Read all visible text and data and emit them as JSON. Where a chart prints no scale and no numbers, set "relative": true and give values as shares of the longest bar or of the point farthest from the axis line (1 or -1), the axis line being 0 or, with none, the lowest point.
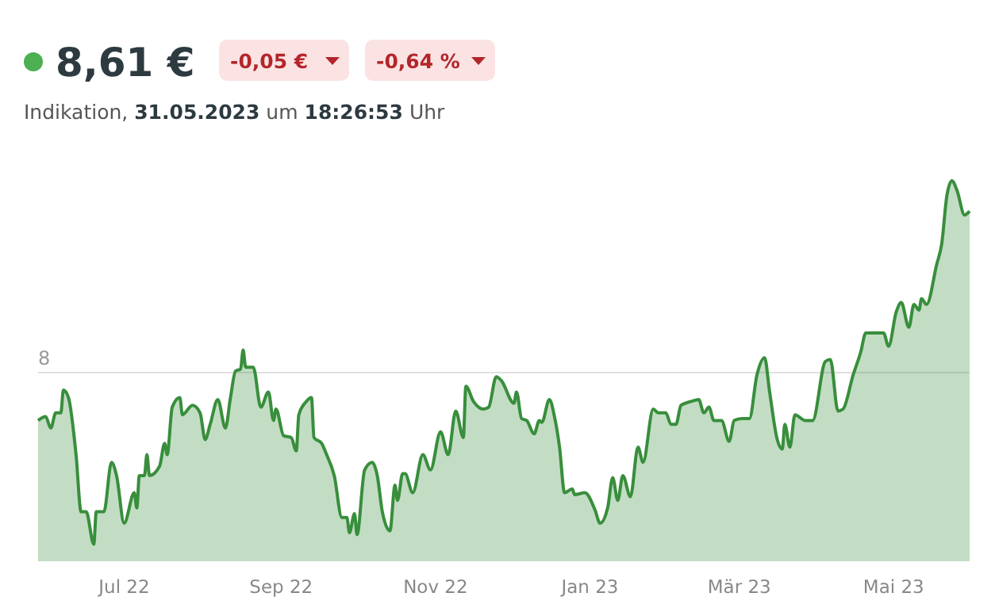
{
  "chart_data": {
    "type": "area",
    "title": "8,61 €",
    "subtitle": "Indikation, 31.05.2023 um 18:26:53 Uhr",
    "annotations": [
      "-0,05 €",
      "-0,64 %",
      {
        "text": "8",
        "y": 0.496
      }
    ],
    "relative": true,
    "x": [
      "2022-05-28",
      "2022-05-31",
      "2022-06-02",
      "2022-06-04",
      "2022-06-06",
      "2022-06-07",
      "2022-06-09",
      "2022-06-12",
      "2022-06-14",
      "2022-06-16",
      "2022-06-19",
      "2022-06-20",
      "2022-06-23",
      "2022-06-26",
      "2022-06-28",
      "2022-07-01",
      "2022-07-05",
      "2022-07-06",
      "2022-07-07",
      "2022-07-09",
      "2022-07-10",
      "2022-07-11",
      "2022-07-15",
      "2022-07-17",
      "2022-07-18",
      "2022-07-20",
      "2022-07-23",
      "2022-07-24",
      "2022-07-28",
      "2022-07-31",
      "2022-08-02",
      "2022-08-04",
      "2022-08-07",
      "2022-08-10",
      "2022-08-12",
      "2022-08-14",
      "2022-08-16",
      "2022-08-17",
      "2022-08-18",
      "2022-08-21",
      "2022-08-24",
      "2022-08-27",
      "2022-08-29",
      "2022-08-30",
      "2022-09-02",
      "2022-09-05",
      "2022-09-07",
      "2022-09-08",
      "2022-09-11",
      "2022-09-13",
      "2022-09-14",
      "2022-09-17",
      "2022-09-19",
      "2022-09-22",
      "2022-09-25",
      "2022-09-27",
      "2022-09-28",
      "2022-09-30",
      "2022-10-01",
      "2022-10-04",
      "2022-10-07",
      "2022-10-09",
      "2022-10-11",
      "2022-10-14",
      "2022-10-16",
      "2022-10-17",
      "2022-10-19",
      "2022-10-20",
      "2022-10-23",
      "2022-10-27",
      "2022-10-30",
      "2022-11-03",
      "2022-11-06",
      "2022-11-09",
      "2022-11-12",
      "2022-11-13",
      "2022-11-16",
      "2022-11-20",
      "2022-11-22",
      "2022-11-25",
      "2022-11-27",
      "2022-12-02",
      "2022-12-03",
      "2022-12-05",
      "2022-12-07",
      "2022-12-10",
      "2022-12-12",
      "2022-12-13",
      "2022-12-16",
      "2022-12-18",
      "2022-12-20",
      "2022-12-22",
      "2022-12-25",
      "2022-12-26",
      "2022-12-30",
      "2023-01-03",
      "2023-01-05",
      "2023-01-08",
      "2023-01-10",
      "2023-01-12",
      "2023-01-14",
      "2023-01-17",
      "2023-01-20",
      "2023-01-22",
      "2023-01-26",
      "2023-01-28",
      "2023-01-31",
      "2023-02-02",
      "2023-02-04",
      "2023-02-06",
      "2023-02-10",
      "2023-02-13",
      "2023-02-15",
      "2023-02-17",
      "2023-02-19",
      "2023-02-22",
      "2023-02-25",
      "2023-02-27",
      "2023-03-02",
      "2023-03-05",
      "2023-03-08",
      "2023-03-11",
      "2023-03-13",
      "2023-03-16",
      "2023-03-18",
      "2023-03-19",
      "2023-03-21",
      "2023-03-23",
      "2023-03-27",
      "2023-03-30",
      "2023-04-04",
      "2023-04-06",
      "2023-04-09",
      "2023-04-11",
      "2023-04-15",
      "2023-04-18",
      "2023-04-20",
      "2023-04-23",
      "2023-04-27",
      "2023-04-29",
      "2023-05-02",
      "2023-05-04",
      "2023-05-07",
      "2023-05-09",
      "2023-05-11",
      "2023-05-12",
      "2023-05-14",
      "2023-05-18",
      "2023-05-20",
      "2023-05-22",
      "2023-05-24",
      "2023-05-26",
      "2023-05-29",
      "2023-05-31"
    ],
    "series": [
      {
        "color": "#388e3c",
        "values": [
          0.37,
          0.38,
          0.35,
          0.39,
          0.39,
          0.45,
          0.43,
          0.28,
          0.13,
          0.13,
          0.045,
          0.13,
          0.13,
          0.26,
          0.225,
          0.1,
          0.18,
          0.14,
          0.225,
          0.225,
          0.28,
          0.225,
          0.25,
          0.31,
          0.28,
          0.405,
          0.43,
          0.385,
          0.41,
          0.39,
          0.32,
          0.36,
          0.425,
          0.35,
          0.43,
          0.5,
          0.505,
          0.555,
          0.51,
          0.51,
          0.405,
          0.445,
          0.37,
          0.4,
          0.33,
          0.325,
          0.29,
          0.385,
          0.42,
          0.43,
          0.325,
          0.31,
          0.28,
          0.225,
          0.115,
          0.115,
          0.075,
          0.125,
          0.07,
          0.24,
          0.26,
          0.225,
          0.13,
          0.08,
          0.2,
          0.16,
          0.23,
          0.23,
          0.18,
          0.28,
          0.24,
          0.34,
          0.28,
          0.395,
          0.325,
          0.46,
          0.42,
          0.4,
          0.405,
          0.485,
          0.475,
          0.415,
          0.445,
          0.375,
          0.37,
          0.335,
          0.37,
          0.365,
          0.425,
          0.38,
          0.3,
          0.18,
          0.19,
          0.175,
          0.18,
          0.135,
          0.1,
          0.14,
          0.22,
          0.16,
          0.225,
          0.17,
          0.3,
          0.26,
          0.4,
          0.39,
          0.39,
          0.36,
          0.36,
          0.41,
          0.42,
          0.425,
          0.39,
          0.405,
          0.37,
          0.37,
          0.315,
          0.37,
          0.375,
          0.375,
          0.49,
          0.535,
          0.445,
          0.32,
          0.295,
          0.36,
          0.3,
          0.385,
          0.37,
          0.37,
          0.525,
          0.53,
          0.395,
          0.4,
          0.49,
          0.55,
          0.6,
          0.6,
          0.6,
          0.565,
          0.655,
          0.68,
          0.615,
          0.675,
          0.66,
          0.69,
          0.675,
          0.78,
          0.835,
          0.96,
          1,
          0.975,
          0.91,
          0.92
        ]
      }
    ],
    "xlim": [
      "2022-05-28",
      "2023-05-31"
    ],
    "xticks": [
      {
        "value": "2022-07-01",
        "label": "Jul 22"
      },
      {
        "value": "2022-09-01",
        "label": "Sep 22"
      },
      {
        "value": "2022-11-01",
        "label": "Nov 22"
      },
      {
        "value": "2023-01-01",
        "label": "Jan 23"
      },
      {
        "value": "2023-03-01",
        "label": "Mär 23"
      },
      {
        "value": "2023-05-01",
        "label": "Mai 23"
      }
    ],
    "ref_lines": [
      {
        "axis": "y",
        "value": 0.496,
        "color": "#e0e0e0"
      }
    ],
    "grid": false
  }
}
